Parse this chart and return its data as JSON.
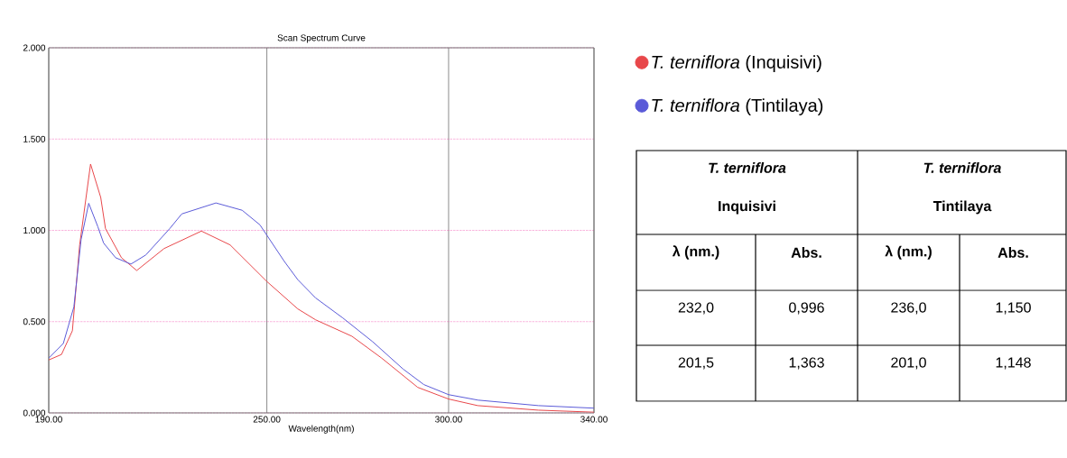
{
  "chart_data": {
    "type": "line",
    "title": "Scan Spectrum Curve",
    "xlabel": "Wavelength(nm)",
    "xlim": [
      190,
      340
    ],
    "xticks": [
      {
        "value": 190,
        "label": "190.00"
      },
      {
        "value": 250,
        "label": "250.00"
      },
      {
        "value": 300,
        "label": "300.00"
      },
      {
        "value": 340,
        "label": "340.00"
      }
    ],
    "ylim": [
      0,
      2
    ],
    "yticks": [
      {
        "value": 0,
        "label": "0.000"
      },
      {
        "value": 0.5,
        "label": "0.500"
      },
      {
        "value": 1,
        "label": "1.000"
      },
      {
        "value": 1.5,
        "label": "1.500"
      },
      {
        "value": 2,
        "label": "2.000"
      }
    ],
    "grid": true,
    "legend": "right",
    "series": [
      {
        "name": "*T. terniflora* (Inquisivi)",
        "color": "#e8474a",
        "x": [
          190,
          193.5,
          196.5,
          198.5,
          201.5,
          204.3,
          205.6,
          210,
          214.2,
          221.7,
          232,
          239.9,
          250,
          258.5,
          263.4,
          273.4,
          281.6,
          291.5,
          300,
          308,
          324.7,
          340
        ],
        "values": [
          0.29,
          0.32,
          0.45,
          0.92,
          1.363,
          1.18,
          1.01,
          0.85,
          0.78,
          0.9,
          0.996,
          0.92,
          0.72,
          0.57,
          0.51,
          0.42,
          0.3,
          0.14,
          0.076,
          0.04,
          0.015,
          0.004
        ]
      },
      {
        "name": "*T. terniflora* (Tintilaya)",
        "color": "#5a5ad8",
        "x": [
          190,
          194,
          196.9,
          198.9,
          201,
          203.5,
          205.1,
          208.4,
          212.6,
          216.7,
          223.3,
          226.6,
          236,
          243.2,
          248.1,
          254.8,
          258.5,
          263.4,
          270.9,
          279.1,
          287.5,
          293.2,
          300,
          308.1,
          324.7,
          340
        ],
        "values": [
          0.3,
          0.38,
          0.58,
          0.95,
          1.148,
          1.02,
          0.93,
          0.85,
          0.815,
          0.865,
          1.01,
          1.09,
          1.15,
          1.11,
          1.03,
          0.83,
          0.73,
          0.63,
          0.52,
          0.39,
          0.24,
          0.155,
          0.1,
          0.07,
          0.04,
          0.026
        ]
      }
    ],
    "annotations": [
      "T. terniflora",
      "Inquisivi",
      "T. terniflora",
      "Tintilaya",
      "λ (nm.)",
      "Abs.",
      "λ (nm.)",
      "Abs.",
      "232,0",
      "0,996",
      "236,0",
      "1,150",
      "201,5",
      "1,363",
      "201,0",
      "1,148"
    ]
  }
}
